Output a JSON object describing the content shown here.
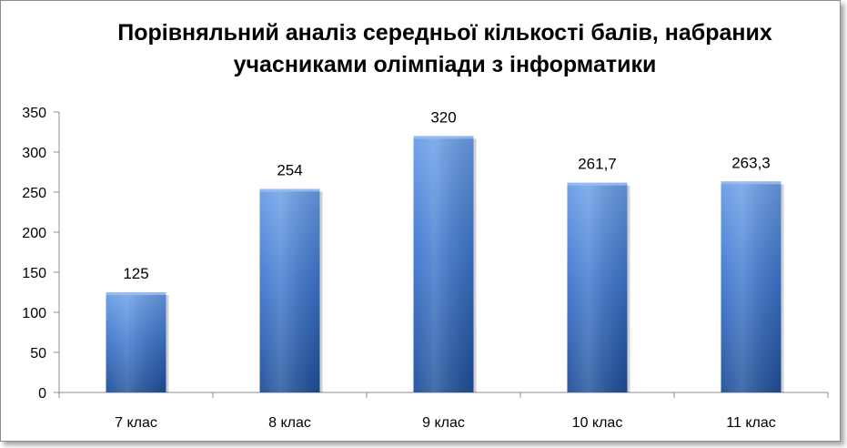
{
  "chart_data": {
    "type": "bar",
    "title_lines": [
      "Порівняльний аналіз середньої кількості балів, набраних",
      "учасниками олімпіади з інформатики"
    ],
    "categories": [
      "7 клас",
      "8 клас",
      "9 клас",
      "10 клас",
      "11 клас"
    ],
    "values": [
      125,
      254,
      320,
      261.7,
      263.3
    ],
    "data_labels": [
      "125",
      "254",
      "320",
      "261,7",
      "263,3"
    ],
    "yticks": [
      0,
      50,
      100,
      150,
      200,
      250,
      300,
      350
    ],
    "ylim": [
      0,
      350
    ],
    "xlabel": "",
    "ylabel": "",
    "grid": false,
    "legend": "none",
    "colors": {
      "bar_top": "#6a9ee6",
      "bar_mid": "#3f78d0",
      "bar_bottom": "#1f4f9a",
      "axis": "#8c8c8c"
    }
  }
}
